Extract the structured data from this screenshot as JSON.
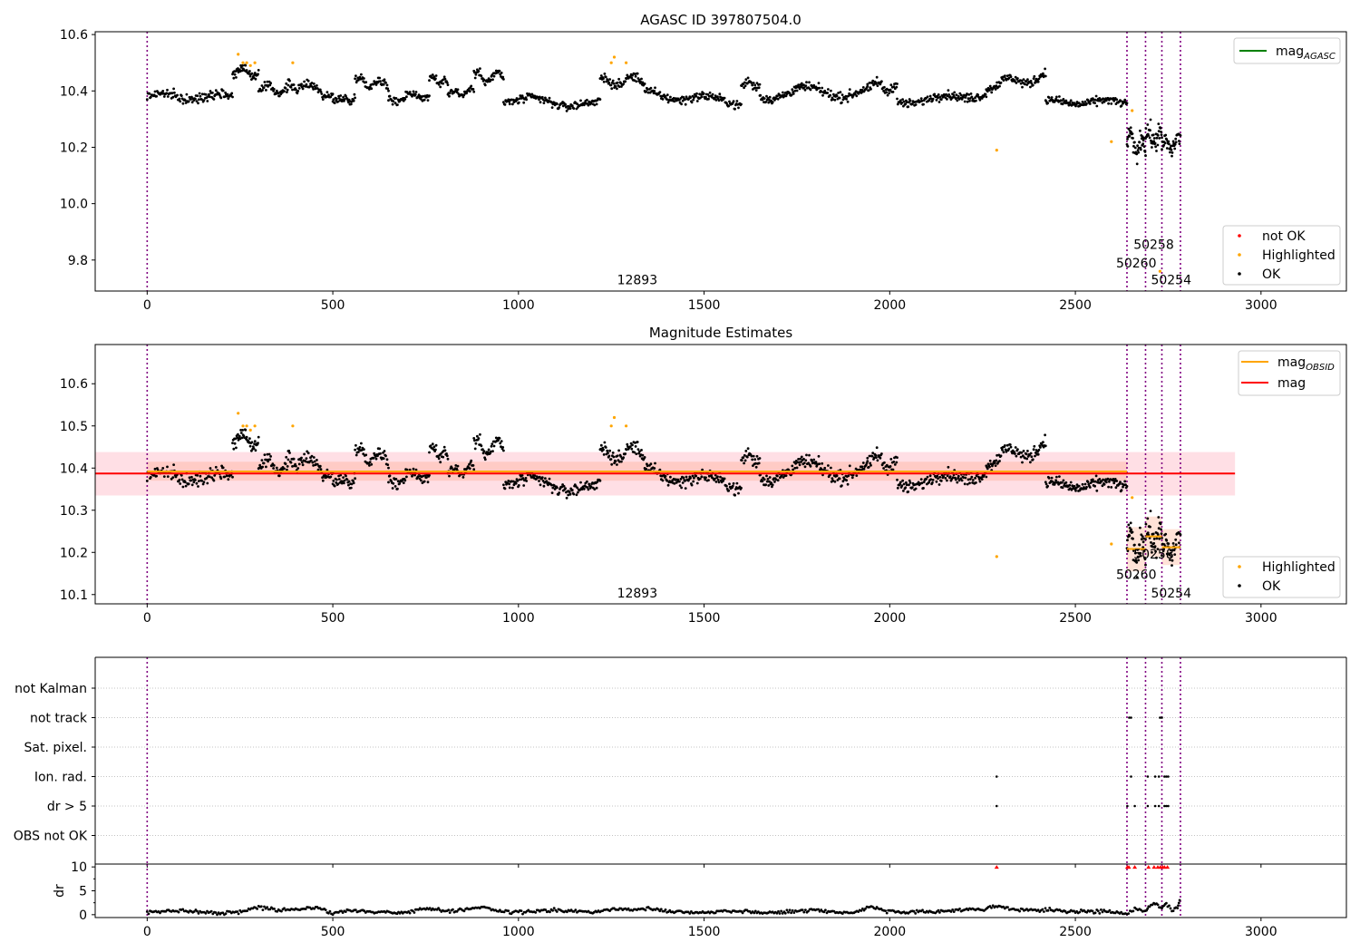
{
  "figure": {
    "agasc_title": "AGASC ID 397807504.0",
    "mag_title": "Magnitude Estimates"
  },
  "colors": {
    "ok": "#000000",
    "highlighted": "#ffa500",
    "not_ok": "#ff0000",
    "obs_line": "#800080",
    "agasc_line": "#008000",
    "mag_line": "#ff0000",
    "obsid_line": "#ffa500",
    "band": "#ffc0cb",
    "band_inner": "#ffa07a",
    "grid": "#b0b0b0"
  },
  "chart_data": [
    {
      "id": "agasc",
      "type": "scatter",
      "title": "AGASC ID 397807504.0",
      "xlim": [
        -140,
        3230
      ],
      "ylim": [
        9.69,
        10.61
      ],
      "xticks": [
        0,
        500,
        1000,
        1500,
        2000,
        2500,
        3000
      ],
      "yticks": [
        9.8,
        10.0,
        10.2,
        10.4,
        10.6
      ],
      "ytick_labels": [
        "9.8",
        "10.0",
        "10.2",
        "10.4",
        "10.6"
      ],
      "obs_boundaries": [
        0,
        2639,
        2689,
        2733,
        2783
      ],
      "obs_labels": [
        {
          "text": "12893",
          "x": 1320,
          "y": 9.73
        },
        {
          "text": "50260",
          "x": 2664,
          "y": 9.79
        },
        {
          "text": "50258",
          "x": 2711,
          "y": 9.855
        },
        {
          "text": "50254",
          "x": 2758,
          "y": 9.73
        }
      ],
      "ok_segments": [
        {
          "x0": 0,
          "x1": 230,
          "y0": 10.38,
          "y1": 10.38,
          "amp": 0.012,
          "n": 120,
          "noise": 0.016
        },
        {
          "x0": 230,
          "x1": 300,
          "y0": 10.48,
          "y1": 10.46,
          "amp": 0.015,
          "n": 45,
          "noise": 0.016
        },
        {
          "x0": 300,
          "x1": 380,
          "y0": 10.41,
          "y1": 10.4,
          "amp": 0.01,
          "n": 45,
          "noise": 0.015
        },
        {
          "x0": 380,
          "x1": 500,
          "y0": 10.43,
          "y1": 10.39,
          "amp": 0.015,
          "n": 65,
          "noise": 0.016
        },
        {
          "x0": 500,
          "x1": 560,
          "y0": 10.37,
          "y1": 10.37,
          "amp": 0.008,
          "n": 35,
          "noise": 0.015
        },
        {
          "x0": 560,
          "x1": 650,
          "y0": 10.44,
          "y1": 10.42,
          "amp": 0.015,
          "n": 50,
          "noise": 0.016
        },
        {
          "x0": 650,
          "x1": 760,
          "y0": 10.37,
          "y1": 10.39,
          "amp": 0.012,
          "n": 60,
          "noise": 0.015
        },
        {
          "x0": 760,
          "x1": 810,
          "y0": 10.44,
          "y1": 10.43,
          "amp": 0.01,
          "n": 28,
          "noise": 0.015
        },
        {
          "x0": 810,
          "x1": 880,
          "y0": 10.39,
          "y1": 10.4,
          "amp": 0.01,
          "n": 40,
          "noise": 0.015
        },
        {
          "x0": 880,
          "x1": 960,
          "y0": 10.45,
          "y1": 10.45,
          "amp": 0.015,
          "n": 45,
          "noise": 0.016
        },
        {
          "x0": 960,
          "x1": 1220,
          "y0": 10.37,
          "y1": 10.35,
          "amp": 0.012,
          "n": 140,
          "noise": 0.015
        },
        {
          "x0": 1220,
          "x1": 1340,
          "y0": 10.43,
          "y1": 10.44,
          "amp": 0.015,
          "n": 70,
          "noise": 0.016
        },
        {
          "x0": 1340,
          "x1": 1600,
          "y0": 10.39,
          "y1": 10.36,
          "amp": 0.012,
          "n": 140,
          "noise": 0.015
        },
        {
          "x0": 1600,
          "x1": 1650,
          "y0": 10.43,
          "y1": 10.42,
          "amp": 0.01,
          "n": 28,
          "noise": 0.016
        },
        {
          "x0": 1650,
          "x1": 1940,
          "y0": 10.39,
          "y1": 10.4,
          "amp": 0.02,
          "n": 160,
          "noise": 0.016
        },
        {
          "x0": 1940,
          "x1": 2020,
          "y0": 10.42,
          "y1": 10.41,
          "amp": 0.015,
          "n": 45,
          "noise": 0.016
        },
        {
          "x0": 2020,
          "x1": 2260,
          "y0": 10.36,
          "y1": 10.39,
          "amp": 0.01,
          "n": 130,
          "noise": 0.015
        },
        {
          "x0": 2260,
          "x1": 2420,
          "y0": 10.42,
          "y1": 10.45,
          "amp": 0.015,
          "n": 90,
          "noise": 0.016
        },
        {
          "x0": 2420,
          "x1": 2639,
          "y0": 10.36,
          "y1": 10.36,
          "amp": 0.008,
          "n": 120,
          "noise": 0.014
        },
        {
          "x0": 2639,
          "x1": 2689,
          "y0": 10.22,
          "y1": 10.2,
          "amp": 0.03,
          "n": 45,
          "noise": 0.035
        },
        {
          "x0": 2689,
          "x1": 2733,
          "y0": 10.24,
          "y1": 10.23,
          "amp": 0.02,
          "n": 40,
          "noise": 0.035
        },
        {
          "x0": 2733,
          "x1": 2783,
          "y0": 10.2,
          "y1": 10.22,
          "amp": 0.02,
          "n": 40,
          "noise": 0.03
        }
      ],
      "highlighted_points": [
        [
          245,
          10.53
        ],
        [
          258,
          10.5
        ],
        [
          268,
          10.5
        ],
        [
          278,
          10.49
        ],
        [
          290,
          10.5
        ],
        [
          392,
          10.5
        ],
        [
          1250,
          10.5
        ],
        [
          1258,
          10.52
        ],
        [
          1290,
          10.5
        ],
        [
          2288,
          10.19
        ],
        [
          2597,
          10.22
        ],
        [
          2653,
          10.33
        ],
        [
          2728,
          9.76
        ]
      ],
      "legends": [
        {
          "position": "upper right",
          "entries": [
            {
              "label": "mag",
              "subscript": "AGASC",
              "marker": "line",
              "color": "#008000"
            }
          ]
        },
        {
          "position": "lower right",
          "entries": [
            {
              "label": "not OK",
              "marker": "dot",
              "color": "#ff0000"
            },
            {
              "label": "Highlighted",
              "marker": "dot",
              "color": "#ffa500"
            },
            {
              "label": "OK",
              "marker": "dot",
              "color": "#000000"
            }
          ]
        }
      ]
    },
    {
      "id": "mag",
      "type": "scatter",
      "title": "Magnitude Estimates",
      "xlim": [
        -140,
        3230
      ],
      "ylim": [
        10.078,
        10.693
      ],
      "xticks": [
        0,
        500,
        1000,
        1500,
        2000,
        2500,
        3000
      ],
      "yticks": [
        10.1,
        10.2,
        10.3,
        10.4,
        10.5,
        10.6
      ],
      "ytick_labels": [
        "10.1",
        "10.2",
        "10.3",
        "10.4",
        "10.5",
        "10.6"
      ],
      "obs_boundaries": [
        0,
        2639,
        2689,
        2733,
        2783
      ],
      "mag": {
        "value": 10.387,
        "x0": -140,
        "x1": 2930,
        "band": [
          10.335,
          10.438
        ],
        "band_x1": 2930
      },
      "obsid_mags": [
        {
          "x0": 0,
          "x1": 2639,
          "value": 10.392,
          "band": [
            10.37,
            10.415
          ]
        },
        {
          "x0": 2639,
          "x1": 2689,
          "value": 10.208,
          "band": [
            10.155,
            10.26
          ]
        },
        {
          "x0": 2689,
          "x1": 2733,
          "value": 10.238,
          "band": [
            10.19,
            10.285
          ]
        },
        {
          "x0": 2733,
          "x1": 2783,
          "value": 10.212,
          "band": [
            10.17,
            10.255
          ]
        }
      ],
      "obs_labels": [
        {
          "text": "12893",
          "x": 1320,
          "y": 10.104
        },
        {
          "text": "50260",
          "x": 2664,
          "y": 10.148
        },
        {
          "text": "50258",
          "x": 2711,
          "y": 10.196
        },
        {
          "text": "50254",
          "x": 2758,
          "y": 10.104
        }
      ],
      "legends": [
        {
          "position": "upper right",
          "entries": [
            {
              "label": "mag",
              "subscript": "OBSID",
              "marker": "line",
              "color": "#ffa500"
            },
            {
              "label": "mag",
              "marker": "line",
              "color": "#ff0000"
            }
          ]
        },
        {
          "position": "lower right",
          "entries": [
            {
              "label": "Highlighted",
              "marker": "dot",
              "color": "#ffa500"
            },
            {
              "label": "OK",
              "marker": "dot",
              "color": "#000000"
            }
          ]
        }
      ]
    },
    {
      "id": "flags",
      "type": "scatter",
      "xlim": [
        -140,
        3230
      ],
      "xticks": [
        0,
        500,
        1000,
        1500,
        2000,
        2500,
        3000
      ],
      "obs_boundaries": [
        0,
        2639,
        2689,
        2733,
        2783
      ],
      "categories": [
        "not Kalman",
        "not track",
        "Sat. pixel.",
        "Ion. rad.",
        "dr > 5",
        "OBS not OK"
      ],
      "flag_points": {
        "not track": [
          2645,
          2650,
          2728,
          2733
        ],
        "Ion. rad.": [
          2288,
          2650,
          2695,
          2715,
          2725,
          2740,
          2745,
          2750
        ],
        "dr > 5": [
          2288,
          2640,
          2660,
          2695,
          2715,
          2725,
          2740,
          2745,
          2750
        ]
      }
    },
    {
      "id": "dr",
      "type": "scatter",
      "ylabel": "dr",
      "xlim": [
        -140,
        3230
      ],
      "ylim": [
        -0.6,
        10.6
      ],
      "yticks": [
        0,
        5,
        10
      ],
      "ytick_labels": [
        "0",
        "5",
        "10"
      ],
      "xticks": [
        0,
        500,
        1000,
        1500,
        2000,
        2500,
        3000
      ],
      "xtick_labels": [
        "0",
        "500",
        "1000",
        "1500",
        "2000",
        "2500",
        "3000"
      ],
      "obs_boundaries": [
        0,
        2639,
        2689,
        2733,
        2783
      ],
      "clip_value": 10,
      "baseline": [
        [
          0,
          0.4
        ],
        [
          50,
          0.7
        ],
        [
          100,
          0.9
        ],
        [
          150,
          0.6
        ],
        [
          200,
          0.3
        ],
        [
          250,
          0.6
        ],
        [
          300,
          1.6
        ],
        [
          350,
          1.0
        ],
        [
          400,
          1.1
        ],
        [
          450,
          1.5
        ],
        [
          500,
          0.4
        ],
        [
          550,
          0.9
        ],
        [
          600,
          0.6
        ],
        [
          650,
          0.5
        ],
        [
          700,
          0.5
        ],
        [
          750,
          1.3
        ],
        [
          800,
          0.8
        ],
        [
          850,
          0.9
        ],
        [
          900,
          1.7
        ],
        [
          950,
          0.7
        ],
        [
          1000,
          0.5
        ],
        [
          1050,
          0.8
        ],
        [
          1100,
          0.9
        ],
        [
          1150,
          0.7
        ],
        [
          1200,
          0.5
        ],
        [
          1250,
          1.2
        ],
        [
          1300,
          1.0
        ],
        [
          1350,
          1.5
        ],
        [
          1400,
          0.7
        ],
        [
          1450,
          0.6
        ],
        [
          1500,
          0.4
        ],
        [
          1550,
          0.9
        ],
        [
          1600,
          0.7
        ],
        [
          1650,
          0.5
        ],
        [
          1700,
          0.4
        ],
        [
          1750,
          0.8
        ],
        [
          1800,
          1.0
        ],
        [
          1850,
          0.6
        ],
        [
          1900,
          0.4
        ],
        [
          1950,
          1.7
        ],
        [
          2000,
          0.6
        ],
        [
          2050,
          0.4
        ],
        [
          2100,
          0.6
        ],
        [
          2150,
          0.8
        ],
        [
          2200,
          1.0
        ],
        [
          2250,
          1.2
        ],
        [
          2290,
          1.7
        ],
        [
          2350,
          0.9
        ],
        [
          2400,
          1.0
        ],
        [
          2450,
          0.8
        ],
        [
          2500,
          0.7
        ],
        [
          2550,
          0.7
        ],
        [
          2600,
          0.5
        ],
        [
          2639,
          0.2
        ],
        [
          2660,
          1.3
        ],
        [
          2689,
          0.6
        ],
        [
          2700,
          1.8
        ],
        [
          2715,
          2.6
        ],
        [
          2733,
          1.4
        ],
        [
          2745,
          2.3
        ],
        [
          2760,
          0.8
        ],
        [
          2775,
          1.6
        ],
        [
          2783,
          3.6
        ]
      ],
      "clipped_points": [
        2288,
        2640,
        2644,
        2660,
        2697,
        2712,
        2722,
        2729,
        2735,
        2740,
        2748
      ]
    }
  ]
}
